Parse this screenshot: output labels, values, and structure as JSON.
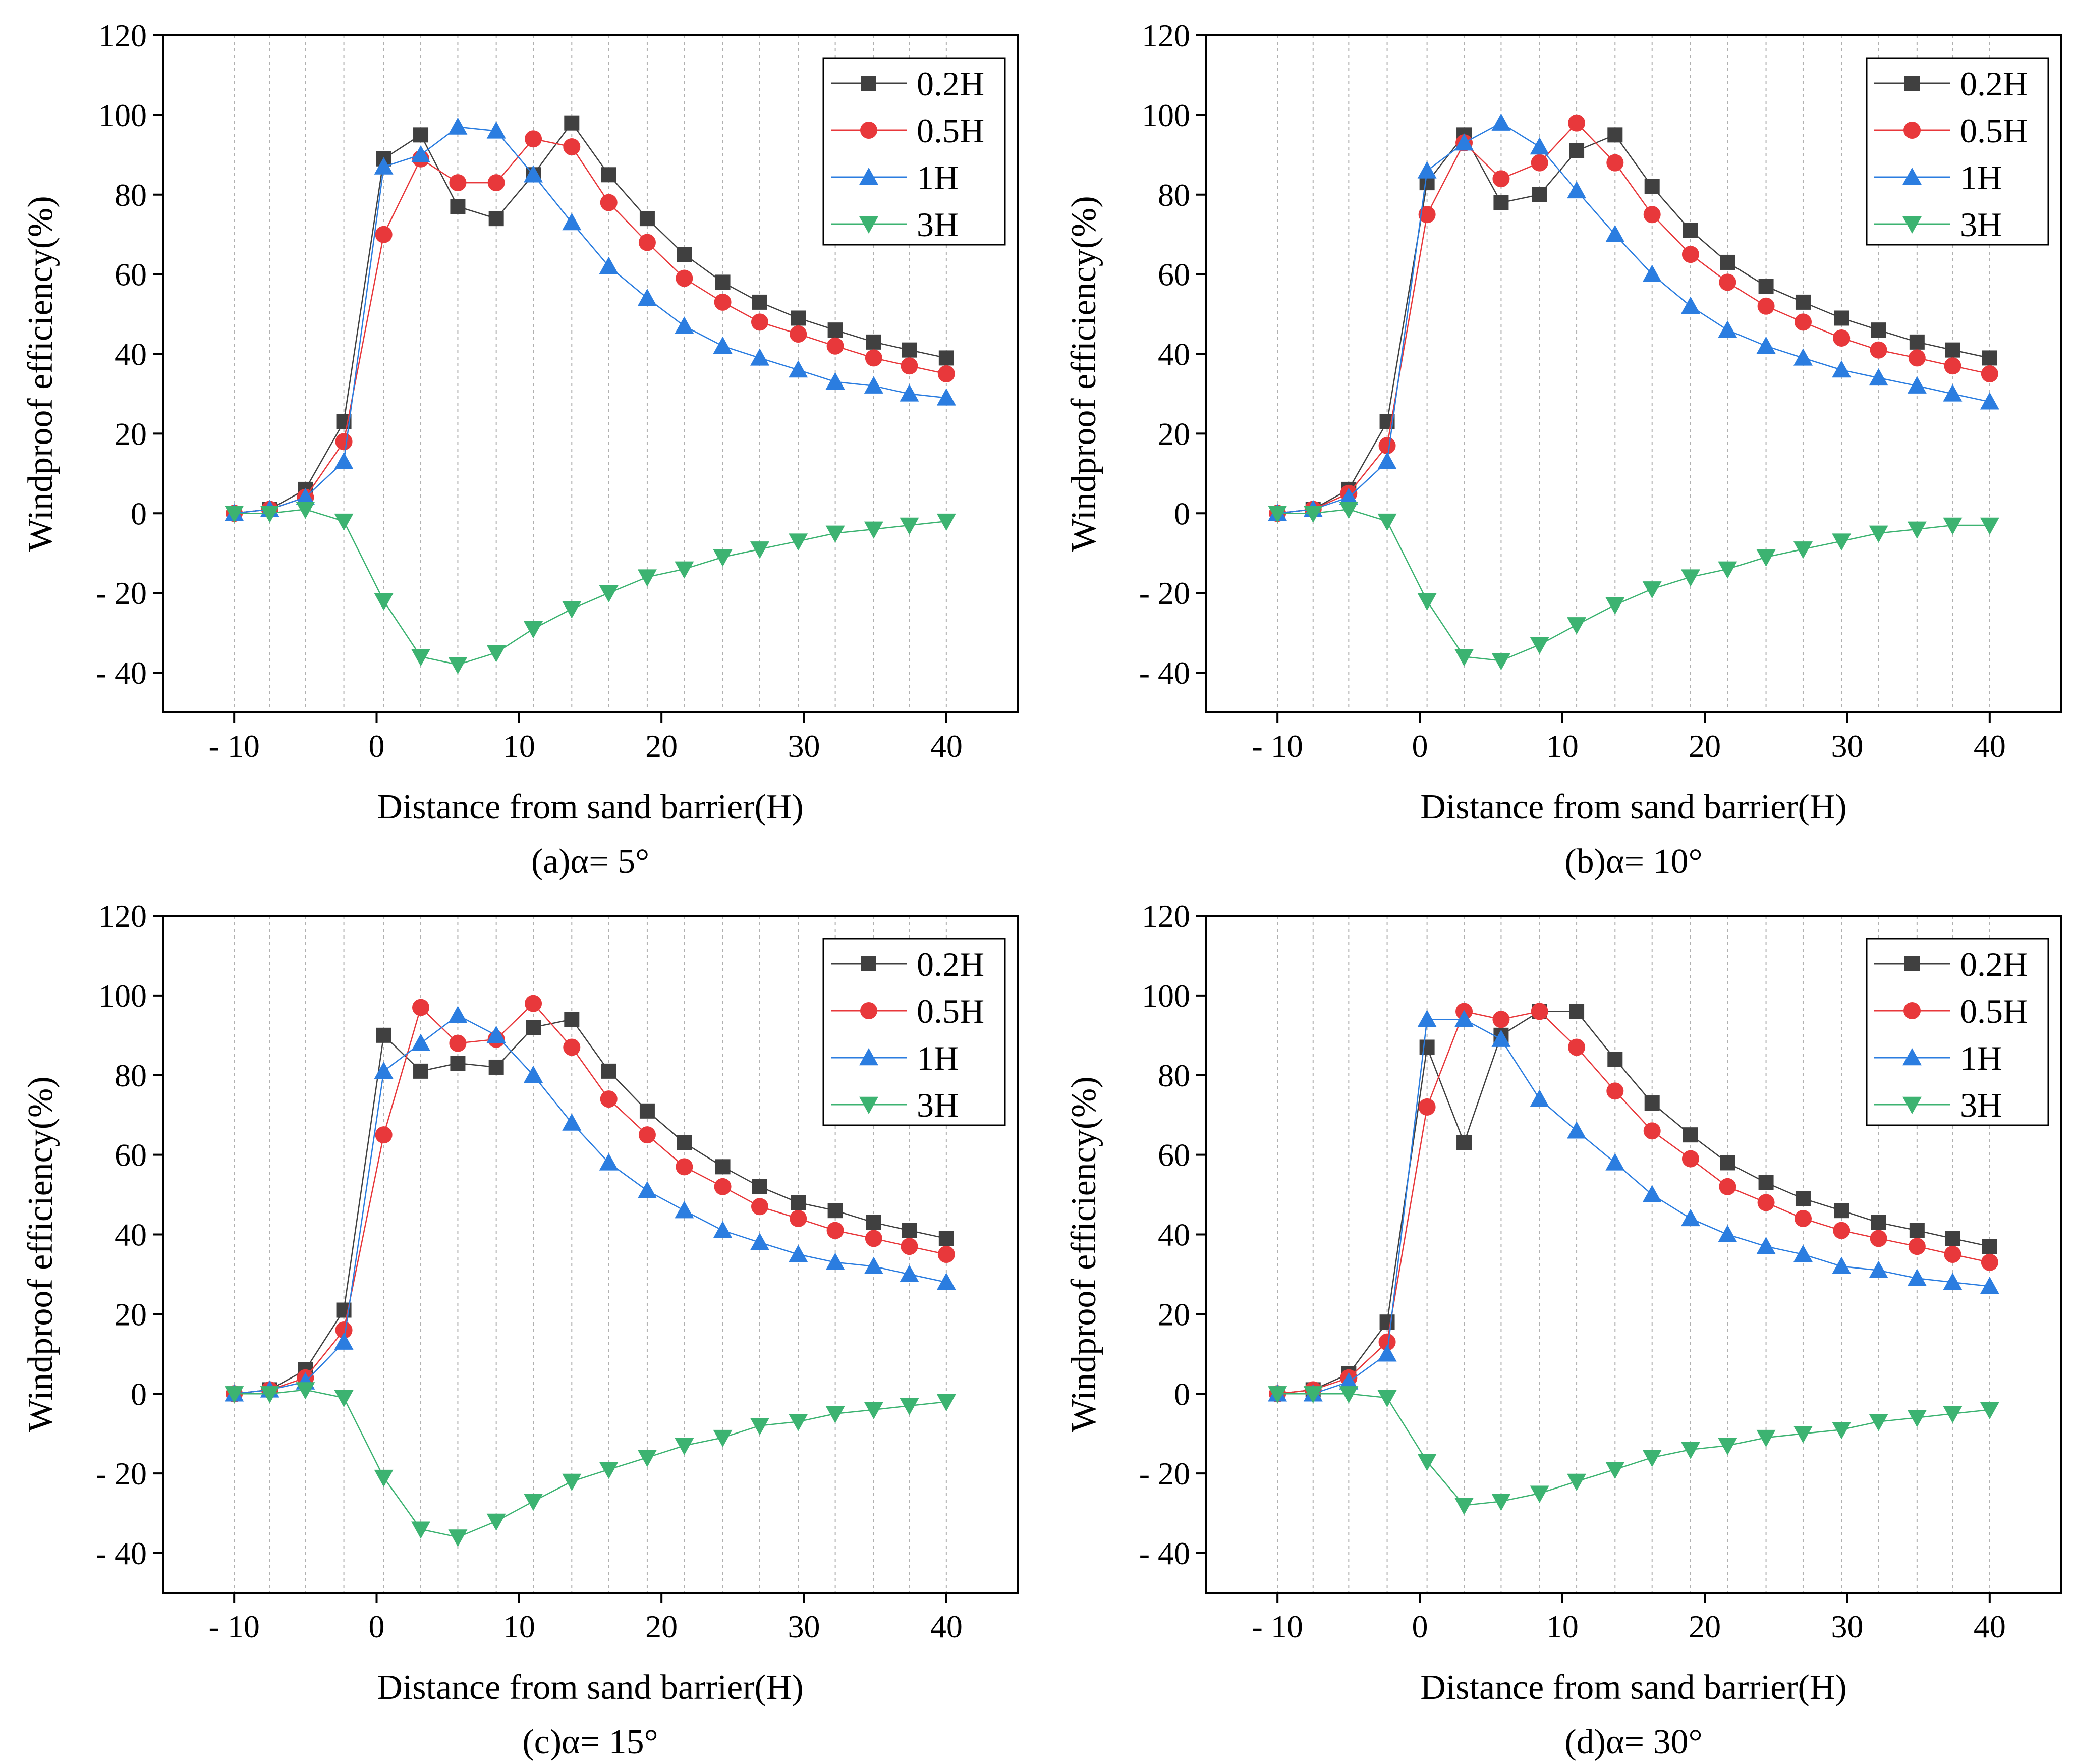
{
  "figure": {
    "panel_labels": [
      "(a)α= 5°",
      "(b)α= 10°",
      "(c)α= 15°",
      "(d)α= 30°"
    ],
    "series_colors": {
      "0.2H": "#404040",
      "0.5H": "#e8383b",
      "1H": "#2b7de0",
      "3H": "#3cb371"
    },
    "series_markers": {
      "0.2H": "square",
      "0.5H": "circle",
      "1H": "triangle-up",
      "3H": "triangle-down"
    }
  },
  "chart_data": [
    {
      "type": "line",
      "title": "(a)α= 5°",
      "xlabel": "Distance from sand barrier(H)",
      "ylabel": "Windproof efficiency(%)",
      "xlim": [
        -15,
        45
      ],
      "ylim": [
        -50,
        120
      ],
      "xticks": [
        -10,
        0,
        10,
        20,
        30,
        40
      ],
      "xtick_labels": [
        "- 10",
        "0",
        "10",
        "20",
        "30",
        "40"
      ],
      "yticks": [
        -40,
        -20,
        0,
        20,
        40,
        60,
        80,
        100,
        120
      ],
      "ytick_labels": [
        "- 40",
        "- 20",
        "0",
        "20",
        "40",
        "60",
        "80",
        "100",
        "120"
      ],
      "grid": "vertical-dashed",
      "legend": "top-right",
      "x": [
        -10,
        -7.5,
        -5,
        -2.3,
        0.5,
        3.1,
        5.7,
        8.4,
        11,
        13.7,
        16.3,
        19,
        21.6,
        24.3,
        26.9,
        29.6,
        32.2,
        34.9,
        37.4,
        40
      ],
      "series": [
        {
          "name": "0.2H",
          "values": [
            0,
            1,
            6,
            23,
            89,
            95,
            77,
            74,
            85,
            98,
            85,
            74,
            65,
            58,
            53,
            49,
            46,
            43,
            41,
            39
          ]
        },
        {
          "name": "0.5H",
          "values": [
            0,
            1,
            4,
            18,
            70,
            89,
            83,
            83,
            94,
            92,
            78,
            68,
            59,
            53,
            48,
            45,
            42,
            39,
            37,
            35
          ]
        },
        {
          "name": "1H",
          "values": [
            0,
            1,
            4,
            13,
            87,
            90,
            97,
            96,
            85,
            73,
            62,
            54,
            47,
            42,
            39,
            36,
            33,
            32,
            30,
            29
          ]
        },
        {
          "name": "3H",
          "values": [
            0,
            0,
            1,
            -2,
            -22,
            -36,
            -38,
            -35,
            -29,
            -24,
            -20,
            -16,
            -14,
            -11,
            -9,
            -7,
            -5,
            -4,
            -3,
            -2
          ]
        }
      ]
    },
    {
      "type": "line",
      "title": "(b)α= 10°",
      "xlabel": "Distance from sand barrier(H)",
      "ylabel": "Windproof efficiency(%)",
      "xlim": [
        -15,
        45
      ],
      "ylim": [
        -50,
        120
      ],
      "xticks": [
        -10,
        0,
        10,
        20,
        30,
        40
      ],
      "xtick_labels": [
        "- 10",
        "0",
        "10",
        "20",
        "30",
        "40"
      ],
      "yticks": [
        -40,
        -20,
        0,
        20,
        40,
        60,
        80,
        100,
        120
      ],
      "ytick_labels": [
        "- 40",
        "- 20",
        "0",
        "20",
        "40",
        "60",
        "80",
        "100",
        "120"
      ],
      "grid": "vertical-dashed",
      "legend": "top-right",
      "x": [
        -10,
        -7.5,
        -5,
        -2.3,
        0.5,
        3.1,
        5.7,
        8.4,
        11,
        13.7,
        16.3,
        19,
        21.6,
        24.3,
        26.9,
        29.6,
        32.2,
        34.9,
        37.4,
        40
      ],
      "series": [
        {
          "name": "0.2H",
          "values": [
            0,
            1,
            6,
            23,
            83,
            95,
            78,
            80,
            91,
            95,
            82,
            71,
            63,
            57,
            53,
            49,
            46,
            43,
            41,
            39
          ]
        },
        {
          "name": "0.5H",
          "values": [
            0,
            1,
            5,
            17,
            75,
            93,
            84,
            88,
            98,
            88,
            75,
            65,
            58,
            52,
            48,
            44,
            41,
            39,
            37,
            35
          ]
        },
        {
          "name": "1H",
          "values": [
            0,
            1,
            4,
            13,
            86,
            93,
            98,
            92,
            81,
            70,
            60,
            52,
            46,
            42,
            39,
            36,
            34,
            32,
            30,
            28
          ]
        },
        {
          "name": "3H",
          "values": [
            0,
            0,
            1,
            -2,
            -22,
            -36,
            -37,
            -33,
            -28,
            -23,
            -19,
            -16,
            -14,
            -11,
            -9,
            -7,
            -5,
            -4,
            -3,
            -3
          ]
        }
      ]
    },
    {
      "type": "line",
      "title": "(c)α= 15°",
      "xlabel": "Distance from sand barrier(H)",
      "ylabel": "Windproof efficiency(%)",
      "xlim": [
        -15,
        45
      ],
      "ylim": [
        -50,
        120
      ],
      "xticks": [
        -10,
        0,
        10,
        20,
        30,
        40
      ],
      "xtick_labels": [
        "- 10",
        "0",
        "10",
        "20",
        "30",
        "40"
      ],
      "yticks": [
        -40,
        -20,
        0,
        20,
        40,
        60,
        80,
        100,
        120
      ],
      "ytick_labels": [
        "- 40",
        "- 20",
        "0",
        "20",
        "40",
        "60",
        "80",
        "100",
        "120"
      ],
      "grid": "vertical-dashed",
      "legend": "top-right",
      "x": [
        -10,
        -7.5,
        -5,
        -2.3,
        0.5,
        3.1,
        5.7,
        8.4,
        11,
        13.7,
        16.3,
        19,
        21.6,
        24.3,
        26.9,
        29.6,
        32.2,
        34.9,
        37.4,
        40
      ],
      "series": [
        {
          "name": "0.2H",
          "values": [
            0,
            1,
            6,
            21,
            90,
            81,
            83,
            82,
            92,
            94,
            81,
            71,
            63,
            57,
            52,
            48,
            46,
            43,
            41,
            39
          ]
        },
        {
          "name": "0.5H",
          "values": [
            0,
            1,
            4,
            16,
            65,
            97,
            88,
            89,
            98,
            87,
            74,
            65,
            57,
            52,
            47,
            44,
            41,
            39,
            37,
            35
          ]
        },
        {
          "name": "1H",
          "values": [
            0,
            1,
            3,
            13,
            81,
            88,
            95,
            90,
            80,
            68,
            58,
            51,
            46,
            41,
            38,
            35,
            33,
            32,
            30,
            28
          ]
        },
        {
          "name": "3H",
          "values": [
            0,
            0,
            1,
            -1,
            -21,
            -34,
            -36,
            -32,
            -27,
            -22,
            -19,
            -16,
            -13,
            -11,
            -8,
            -7,
            -5,
            -4,
            -3,
            -2
          ]
        }
      ]
    },
    {
      "type": "line",
      "title": "(d)α= 30°",
      "xlabel": "Distance from sand barrier(H)",
      "ylabel": "Windproof efficiency(%)",
      "xlim": [
        -15,
        45
      ],
      "ylim": [
        -50,
        120
      ],
      "xticks": [
        -10,
        0,
        10,
        20,
        30,
        40
      ],
      "xtick_labels": [
        "- 10",
        "0",
        "10",
        "20",
        "30",
        "40"
      ],
      "yticks": [
        -40,
        -20,
        0,
        20,
        40,
        60,
        80,
        100,
        120
      ],
      "ytick_labels": [
        "- 40",
        "- 20",
        "0",
        "20",
        "40",
        "60",
        "80",
        "100",
        "120"
      ],
      "grid": "vertical-dashed",
      "legend": "top-right",
      "x": [
        -10,
        -7.5,
        -5,
        -2.3,
        0.5,
        3.1,
        5.7,
        8.4,
        11,
        13.7,
        16.3,
        19,
        21.6,
        24.3,
        26.9,
        29.6,
        32.2,
        34.9,
        37.4,
        40
      ],
      "series": [
        {
          "name": "0.2H",
          "values": [
            0,
            1,
            5,
            18,
            87,
            63,
            90,
            96,
            96,
            84,
            73,
            65,
            58,
            53,
            49,
            46,
            43,
            41,
            39,
            37
          ]
        },
        {
          "name": "0.5H",
          "values": [
            0,
            1,
            4,
            13,
            72,
            96,
            94,
            96,
            87,
            76,
            66,
            59,
            52,
            48,
            44,
            41,
            39,
            37,
            35,
            33
          ]
        },
        {
          "name": "1H",
          "values": [
            0,
            0,
            3,
            10,
            94,
            94,
            89,
            74,
            66,
            58,
            50,
            44,
            40,
            37,
            35,
            32,
            31,
            29,
            28,
            27
          ]
        },
        {
          "name": "3H",
          "values": [
            0,
            0,
            0,
            -1,
            -17,
            -28,
            -27,
            -25,
            -22,
            -19,
            -16,
            -14,
            -13,
            -11,
            -10,
            -9,
            -7,
            -6,
            -5,
            -4
          ]
        }
      ]
    }
  ]
}
